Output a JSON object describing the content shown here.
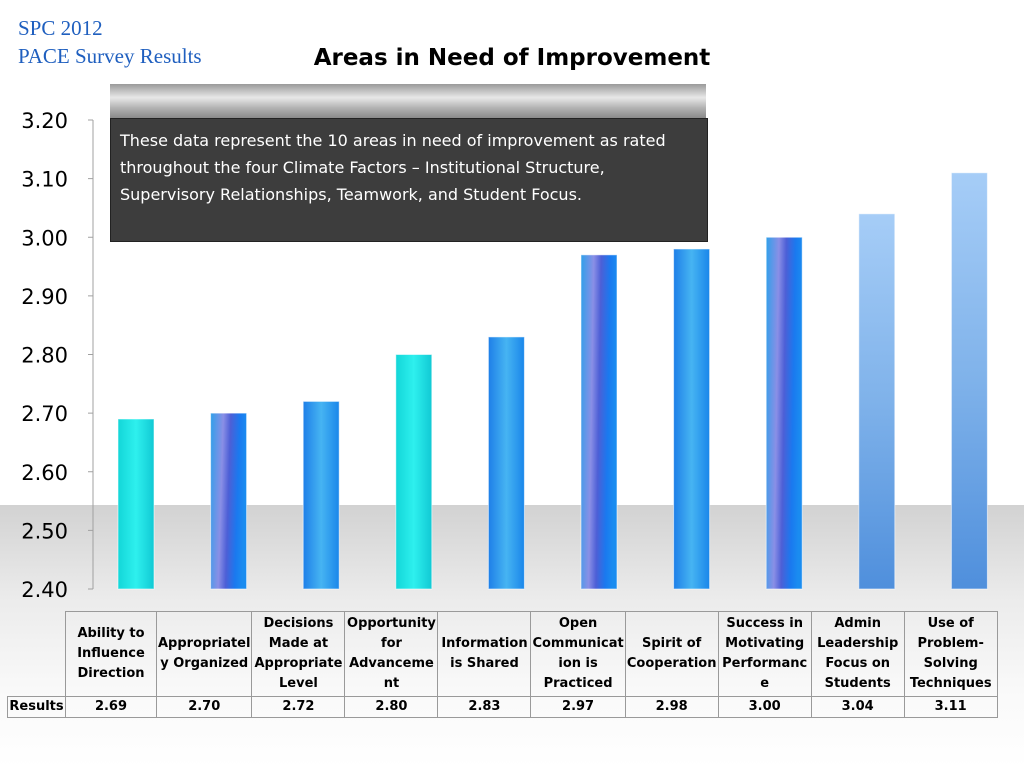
{
  "header": {
    "corner_line1": "SPC 2012",
    "corner_line2": "PACE Survey Results",
    "title": "Areas in Need of Improvement"
  },
  "callout": {
    "text": "These data represent the 10 areas in need of improvement as rated throughout  the four Climate Factors – Institutional Structure, Supervisory Relationships, Teamwork, and Student Focus."
  },
  "table": {
    "row_label": "Results"
  },
  "chart_data": {
    "type": "bar",
    "title": "Areas in Need of Improvement",
    "categories": [
      "Ability to Influence Direction",
      "Appropriately Organized",
      "Decisions Made at Appropriate Level",
      "Opportunity for Advancement",
      "Information is Shared",
      "Open Communication is Practiced",
      "Spirit of Cooperation",
      "Success in Motivating Performance",
      "Admin Leadership Focus on Students",
      "Use of Problem-Solving Techniques"
    ],
    "category_lines": [
      [
        "Ability to",
        "Influence",
        "Direction"
      ],
      [
        "Appropriatel",
        "y Organized"
      ],
      [
        "Decisions",
        "Made at",
        "Appropriate",
        "Level"
      ],
      [
        "Opportunity",
        "for",
        "Advanceme",
        "nt"
      ],
      [
        "Information",
        "is Shared"
      ],
      [
        "Open",
        "Communicat",
        "ion is",
        "Practiced"
      ],
      [
        "Spirit of",
        "Cooperation"
      ],
      [
        "Success in",
        "Motivating",
        "Performanc",
        "e"
      ],
      [
        "Admin",
        "Leadership",
        "Focus on",
        "Students"
      ],
      [
        "Use of",
        "Problem-",
        "Solving",
        "Techniques"
      ]
    ],
    "series": [
      {
        "name": "Results",
        "values": [
          2.69,
          2.7,
          2.72,
          2.8,
          2.83,
          2.97,
          2.98,
          3.0,
          3.04,
          3.11
        ],
        "labels": [
          "2.69",
          "2.70",
          "2.72",
          "2.80",
          "2.83",
          "2.97",
          "2.98",
          "3.00",
          "3.04",
          "3.11"
        ]
      }
    ],
    "ylim": [
      2.4,
      3.2
    ],
    "yticks": [
      "2.40",
      "2.50",
      "2.60",
      "2.70",
      "2.80",
      "2.90",
      "3.00",
      "3.10",
      "3.20"
    ],
    "grid": false,
    "legend": "none",
    "bar_styles": [
      "cyan",
      "purple-blue",
      "blue",
      "cyan",
      "blue",
      "purple-blue",
      "blue",
      "purple-blue",
      "light-blue",
      "light-blue"
    ]
  }
}
